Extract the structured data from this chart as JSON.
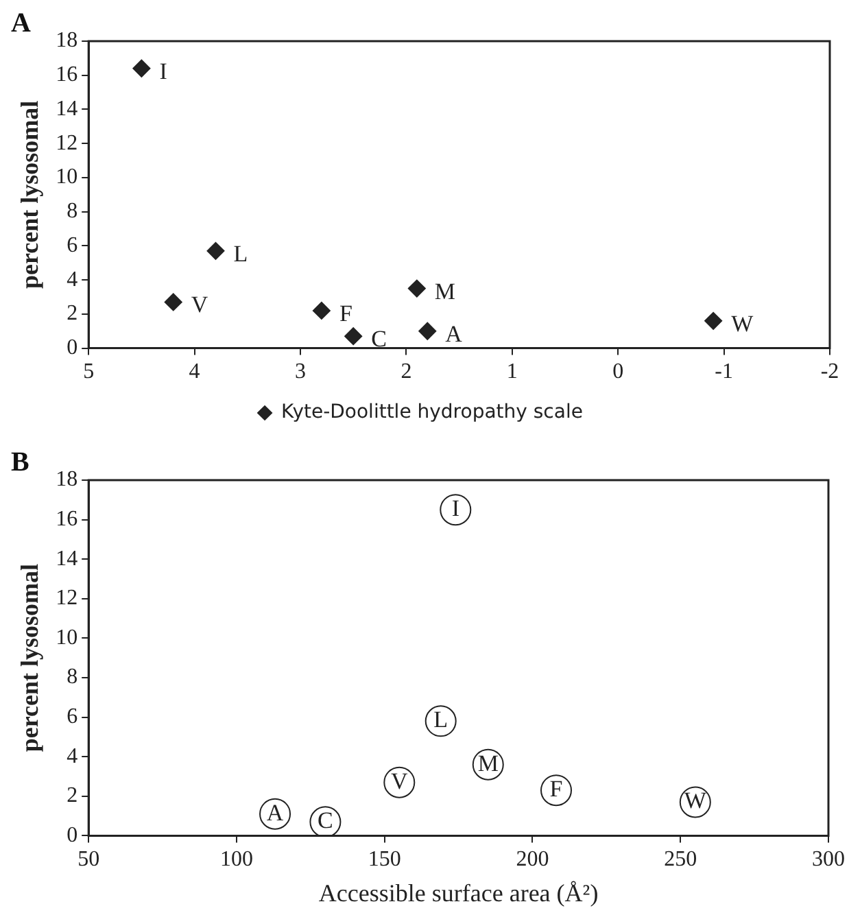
{
  "chart_data": [
    {
      "type": "scatter",
      "title": "A",
      "ylabel": "percent lysosomal",
      "xlim": [
        5,
        -2
      ],
      "xticks": [
        5,
        4,
        3,
        2,
        1,
        0,
        -1,
        -2
      ],
      "ylim": [
        0,
        18
      ],
      "yticks": [
        0,
        2,
        4,
        6,
        8,
        10,
        12,
        14,
        16,
        18
      ],
      "grid": false,
      "legend": "bottom",
      "marker": "diamond",
      "series": [
        {
          "name": "Kyte-Doolittle hydropathy scale",
          "color": "#222222",
          "x": [
            4.5,
            3.8,
            4.2,
            2.8,
            2.5,
            1.9,
            1.8,
            -0.9
          ],
          "values": [
            16.4,
            5.7,
            2.7,
            2.2,
            0.7,
            3.5,
            1.0,
            1.6
          ]
        }
      ],
      "annotations": [
        {
          "text": "I",
          "x": 4.5,
          "y": 16.4
        },
        {
          "text": "L",
          "x": 3.8,
          "y": 5.7
        },
        {
          "text": "V",
          "x": 4.2,
          "y": 2.7
        },
        {
          "text": "F",
          "x": 2.8,
          "y": 2.2
        },
        {
          "text": "C",
          "x": 2.5,
          "y": 0.7
        },
        {
          "text": "M",
          "x": 1.9,
          "y": 3.5
        },
        {
          "text": "A",
          "x": 1.8,
          "y": 1.0
        },
        {
          "text": "W",
          "x": -0.9,
          "y": 1.6
        }
      ]
    },
    {
      "type": "scatter",
      "title": "B",
      "xlabel": "Accessible surface area (Å²)",
      "ylabel": "percent lysosomal",
      "xlim": [
        50,
        300
      ],
      "xticks": [
        50,
        100,
        150,
        200,
        250,
        300
      ],
      "ylim": [
        0,
        18
      ],
      "yticks": [
        0,
        2,
        4,
        6,
        8,
        10,
        12,
        14,
        16,
        18
      ],
      "grid": false,
      "marker": "circle",
      "series": [
        {
          "color": "#222222",
          "x": [
            113,
            130,
            155,
            169,
            174,
            185,
            208,
            255
          ],
          "values": [
            1.1,
            0.7,
            2.7,
            5.8,
            16.5,
            3.6,
            2.3,
            1.7
          ]
        }
      ],
      "annotations": [
        {
          "text": "A",
          "x": 113,
          "y": 1.1
        },
        {
          "text": "C",
          "x": 130,
          "y": 0.7
        },
        {
          "text": "V",
          "x": 155,
          "y": 2.7
        },
        {
          "text": "L",
          "x": 169,
          "y": 5.8
        },
        {
          "text": "I",
          "x": 174,
          "y": 16.5
        },
        {
          "text": "M",
          "x": 185,
          "y": 3.6
        },
        {
          "text": "F",
          "x": 208,
          "y": 2.3
        },
        {
          "text": "W",
          "x": 255,
          "y": 1.7
        }
      ]
    }
  ]
}
